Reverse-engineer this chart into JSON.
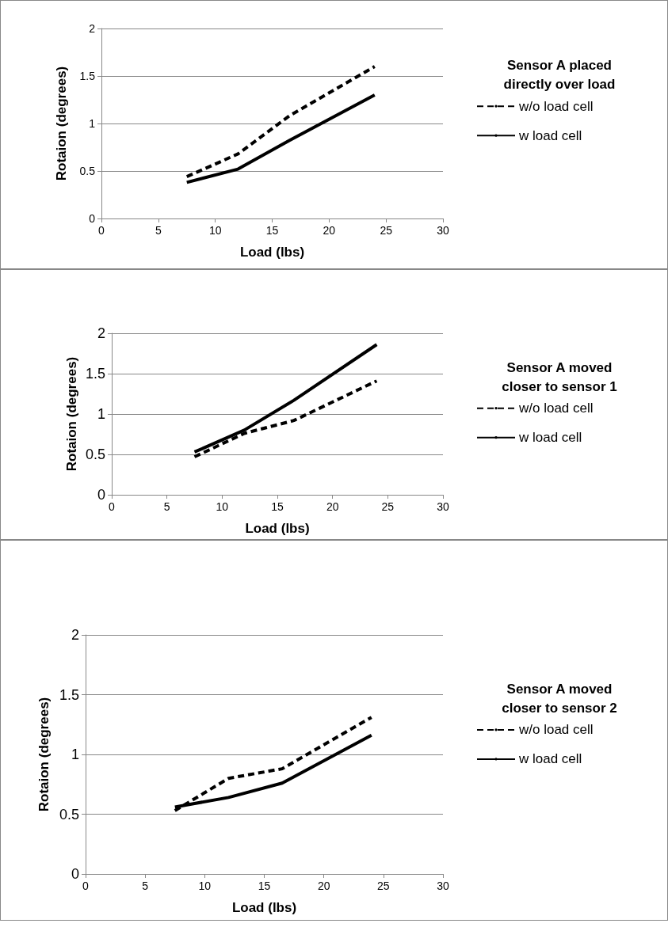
{
  "chart_data": [
    {
      "type": "line",
      "legend_title": "Sensor A placed directly over load",
      "xlabel": "Load (lbs)",
      "ylabel": "Rotaion (degrees)",
      "xlim": [
        0,
        30
      ],
      "xticks": [
        0,
        5,
        10,
        15,
        20,
        25,
        30
      ],
      "ylim": [
        0,
        2
      ],
      "yticks": [
        0,
        0.5,
        1,
        1.5,
        2
      ],
      "grid": "y",
      "legend": "right",
      "marker": "none",
      "series": [
        {
          "name": "w/o load cell",
          "color": "#000000",
          "line_style": "dashed",
          "x": [
            7.5,
            12,
            16.5,
            24
          ],
          "values": [
            0.44,
            0.68,
            1.08,
            1.6
          ]
        },
        {
          "name": "w load cell",
          "color": "#000000",
          "line_style": "solid",
          "x": [
            7.5,
            12,
            16.5,
            24
          ],
          "values": [
            0.38,
            0.52,
            0.82,
            1.3
          ]
        }
      ]
    },
    {
      "type": "line",
      "legend_title": "Sensor A moved closer to sensor 1",
      "xlabel": "Load (lbs)",
      "ylabel": "Rotaion (degrees)",
      "xlim": [
        0,
        30
      ],
      "xticks": [
        0,
        5,
        10,
        15,
        20,
        25,
        30
      ],
      "ylim": [
        0,
        2
      ],
      "yticks": [
        0,
        0.5,
        1,
        1.5,
        2
      ],
      "grid": "y",
      "legend": "right",
      "marker": "none",
      "series": [
        {
          "name": "w/o load cell",
          "color": "#000000",
          "line_style": "dashed",
          "x": [
            7.5,
            12,
            16.5,
            24
          ],
          "values": [
            0.47,
            0.76,
            0.92,
            1.41
          ]
        },
        {
          "name": "w load cell",
          "color": "#000000",
          "line_style": "solid",
          "x": [
            7.5,
            12,
            16.5,
            24
          ],
          "values": [
            0.53,
            0.8,
            1.17,
            1.86
          ]
        }
      ]
    },
    {
      "type": "line",
      "legend_title": "Sensor A moved closer to sensor 2",
      "xlabel": "Load (lbs)",
      "ylabel": "Rotaion (degrees)",
      "xlim": [
        0,
        30
      ],
      "xticks": [
        0,
        5,
        10,
        15,
        20,
        25,
        30
      ],
      "ylim": [
        0,
        2
      ],
      "yticks": [
        0,
        0.5,
        1,
        1.5,
        2
      ],
      "grid": "y",
      "legend": "right",
      "marker": "none",
      "series": [
        {
          "name": "w/o load cell",
          "color": "#000000",
          "line_style": "dashed",
          "x": [
            7.5,
            12,
            16.5,
            24
          ],
          "values": [
            0.53,
            0.8,
            0.88,
            1.31
          ]
        },
        {
          "name": "w load cell",
          "color": "#000000",
          "line_style": "solid",
          "x": [
            7.5,
            12,
            16.5,
            24
          ],
          "values": [
            0.56,
            0.64,
            0.76,
            1.16
          ]
        }
      ]
    }
  ]
}
